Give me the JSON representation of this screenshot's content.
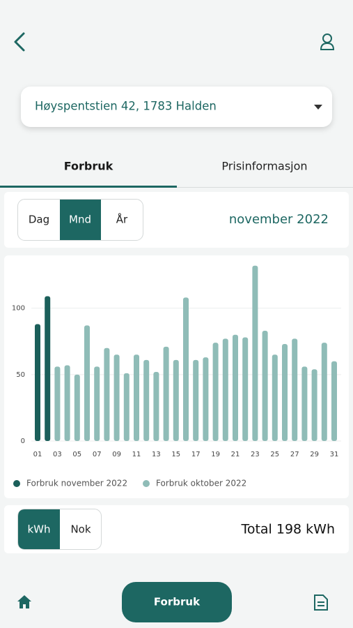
{
  "address": "Høyspentstien 42, 1783 Halden",
  "tabs": [
    "Forbruk",
    "Prisinformasjon"
  ],
  "period_buttons": [
    "Dag",
    "Mnd",
    "År"
  ],
  "period_label": "november 2022",
  "chart_data": {
    "type": "bar",
    "categories": [
      "01",
      null,
      "03",
      null,
      "05",
      null,
      "07",
      null,
      "09",
      null,
      "11",
      null,
      "13",
      null,
      "15",
      null,
      "17",
      null,
      "19",
      null,
      "21",
      null,
      "23",
      null,
      "25",
      null,
      "27",
      null,
      "29",
      null,
      "31"
    ],
    "series": [
      {
        "name": "Forbruk november 2022",
        "color": "#1b5f5a",
        "values": [
          88,
          109,
          null,
          null,
          null,
          null,
          null,
          null,
          null,
          null,
          null,
          null,
          null,
          null,
          null,
          null,
          null,
          null,
          null,
          null,
          null,
          null,
          null,
          null,
          null,
          null,
          null,
          null,
          null,
          null,
          null
        ]
      },
      {
        "name": "Forbruk oktober 2022",
        "color": "#8fbcb7",
        "values": [
          null,
          null,
          56,
          57,
          50,
          87,
          56,
          70,
          65,
          51,
          65,
          61,
          52,
          71,
          61,
          108,
          61,
          63,
          74,
          77,
          80,
          78,
          132,
          83,
          65,
          73,
          77,
          56,
          54,
          74,
          60
        ]
      }
    ],
    "ylim": [
      0,
      135
    ],
    "yticks": [
      0,
      50,
      100
    ],
    "grid": true,
    "legend": "bottom"
  },
  "unit_buttons": [
    "kWh",
    "Nok"
  ],
  "total": "Total 198 kWh",
  "nav_button": "Forbruk"
}
